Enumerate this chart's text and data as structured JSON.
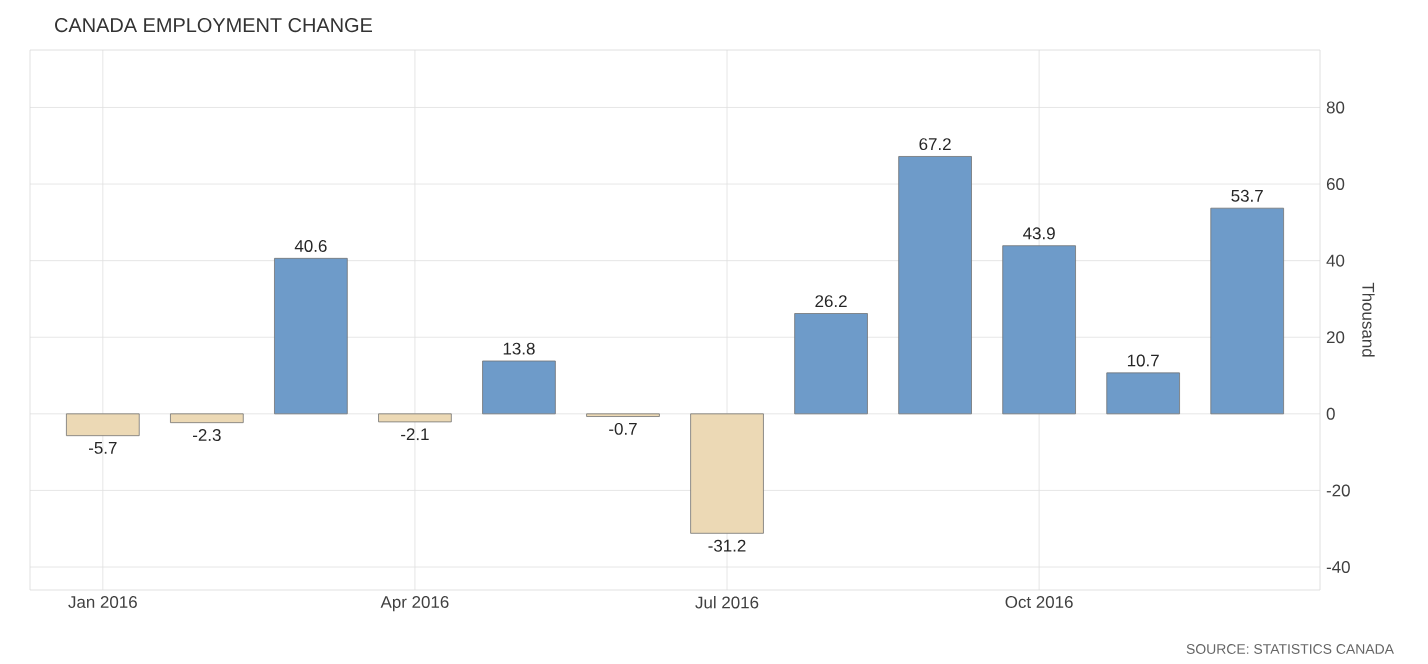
{
  "chart_data": {
    "type": "bar",
    "title": "CANADA EMPLOYMENT CHANGE",
    "ylabel": "Thousand",
    "categories": [
      "Jan 2016",
      null,
      null,
      "Apr 2016",
      null,
      null,
      "Jul 2016",
      null,
      null,
      "Oct 2016",
      null,
      null
    ],
    "values": [
      -5.7,
      -2.3,
      40.6,
      -2.1,
      13.8,
      -0.7,
      -31.2,
      26.2,
      67.2,
      43.9,
      10.7,
      53.7
    ],
    "colors": [
      "#ecd9b5",
      "#ecd9b5",
      "#6e9bc9",
      "#ecd9b5",
      "#6e9bc9",
      "#ecd9b5",
      "#ecd9b5",
      "#6e9bc9",
      "#6e9bc9",
      "#6e9bc9",
      "#6e9bc9",
      "#6e9bc9"
    ],
    "ylim": [
      -46,
      95
    ],
    "yticks": [
      -40,
      -20,
      0,
      20,
      40,
      60,
      80
    ],
    "grid": true,
    "data_labels": true,
    "annotations": [
      "SOURCE: STATISTICS CANADA"
    ]
  }
}
